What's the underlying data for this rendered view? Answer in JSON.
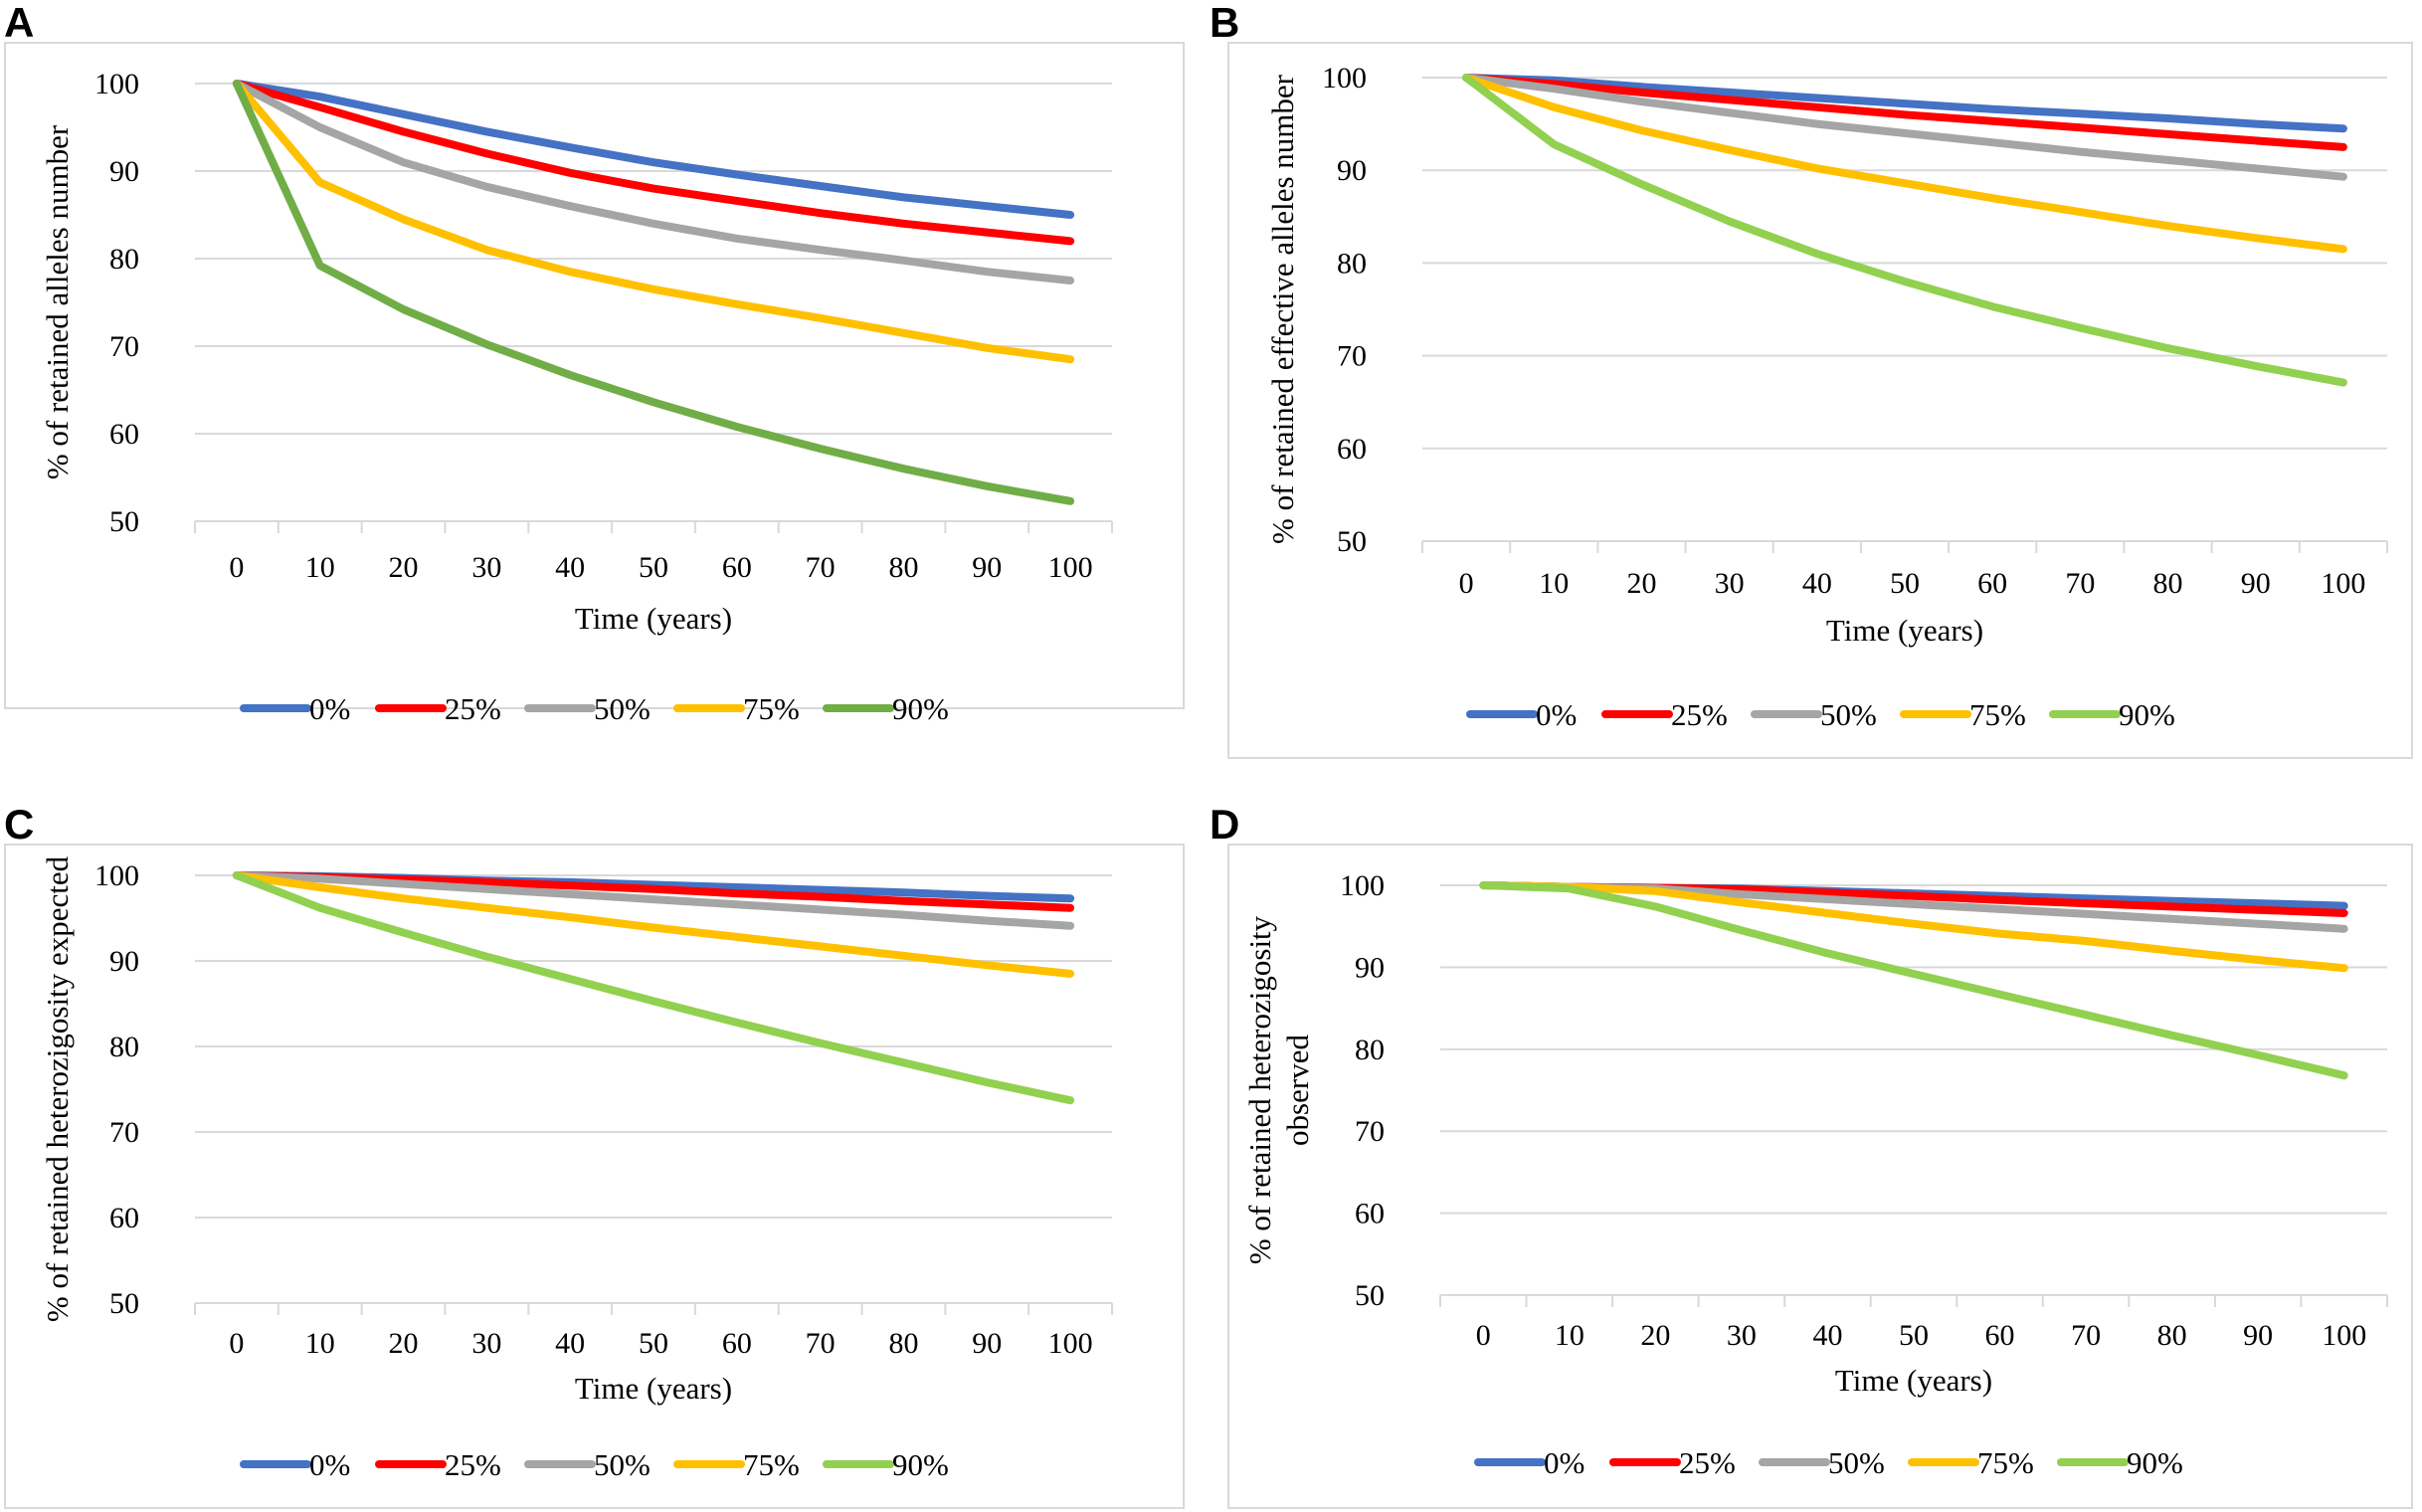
{
  "chart_data": [
    {
      "panel": "A",
      "type": "line",
      "title": "",
      "xlabel": "Time (years)",
      "ylabel": "% of retained  alleles number",
      "x": [
        0,
        10,
        20,
        30,
        40,
        50,
        60,
        70,
        80,
        90,
        100
      ],
      "xticks": [
        "0",
        "10",
        "20",
        "30",
        "40",
        "50",
        "60",
        "70",
        "80",
        "90",
        "100"
      ],
      "yticks": [
        "50",
        "60",
        "70",
        "80",
        "90",
        "100"
      ],
      "ylim": [
        50,
        100
      ],
      "legend_position": "bottom",
      "series": [
        {
          "name": "0%",
          "color": "#4472C4",
          "values": [
            100,
            98.5,
            96.5,
            94.5,
            92.7,
            91,
            89.6,
            88.3,
            87,
            86,
            85
          ]
        },
        {
          "name": "25%",
          "color": "#FF0000",
          "values": [
            100,
            97.3,
            94.5,
            92,
            89.8,
            88,
            86.6,
            85.2,
            84,
            83,
            82
          ]
        },
        {
          "name": "50%",
          "color": "#A5A5A5",
          "values": [
            100,
            95,
            91,
            88.2,
            86,
            84,
            82.3,
            81,
            79.8,
            78.5,
            77.5
          ]
        },
        {
          "name": "75%",
          "color": "#FFC000",
          "values": [
            100,
            88.7,
            84.5,
            81,
            78.5,
            76.5,
            74.8,
            73.2,
            71.5,
            69.8,
            68.5
          ]
        },
        {
          "name": "90%",
          "color": "#70AD47",
          "values": [
            100,
            79.2,
            74.2,
            70.2,
            66.7,
            63.6,
            60.8,
            58.3,
            56,
            54,
            52.3
          ]
        }
      ]
    },
    {
      "panel": "B",
      "type": "line",
      "title": "",
      "xlabel": "Time (years)",
      "ylabel": "% of retained effective alleles number",
      "x": [
        0,
        10,
        20,
        30,
        40,
        50,
        60,
        70,
        80,
        90,
        100
      ],
      "xticks": [
        "0",
        "10",
        "20",
        "30",
        "40",
        "50",
        "60",
        "70",
        "80",
        "90",
        "100"
      ],
      "yticks": [
        "50",
        "60",
        "70",
        "80",
        "90",
        "100"
      ],
      "ylim": [
        50,
        100
      ],
      "legend_position": "bottom",
      "series": [
        {
          "name": "0%",
          "color": "#4472C4",
          "values": [
            100,
            99.7,
            99,
            98.4,
            97.8,
            97.2,
            96.6,
            96.1,
            95.6,
            95,
            94.5
          ]
        },
        {
          "name": "25%",
          "color": "#FF0000",
          "values": [
            100,
            99.3,
            98.4,
            97.6,
            96.8,
            96,
            95.3,
            94.6,
            93.9,
            93.2,
            92.5
          ]
        },
        {
          "name": "50%",
          "color": "#A5A5A5",
          "values": [
            100,
            98.8,
            97.4,
            96.2,
            95,
            94,
            93,
            92,
            91.1,
            90.2,
            89.3
          ]
        },
        {
          "name": "75%",
          "color": "#FFC000",
          "values": [
            100,
            96.8,
            94.3,
            92.2,
            90.2,
            88.6,
            87,
            85.5,
            84,
            82.7,
            81.5
          ]
        },
        {
          "name": "90%",
          "color": "#92D050",
          "values": [
            100,
            92.8,
            88.5,
            84.5,
            81,
            78,
            75.3,
            73,
            70.8,
            68.9,
            67.1
          ]
        }
      ]
    },
    {
      "panel": "C",
      "type": "line",
      "title": "",
      "xlabel": "Time (years)",
      "ylabel": "% of retained heterozigosity expected",
      "x": [
        0,
        10,
        20,
        30,
        40,
        50,
        60,
        70,
        80,
        90,
        100
      ],
      "xticks": [
        "0",
        "10",
        "20",
        "30",
        "40",
        "50",
        "60",
        "70",
        "80",
        "90",
        "100"
      ],
      "yticks": [
        "50",
        "60",
        "70",
        "80",
        "90",
        "100"
      ],
      "ylim": [
        50,
        100
      ],
      "legend_position": "bottom",
      "series": [
        {
          "name": "0%",
          "color": "#4472C4",
          "values": [
            100,
            99.9,
            99.7,
            99.4,
            99.2,
            98.9,
            98.6,
            98.3,
            98,
            97.6,
            97.3
          ]
        },
        {
          "name": "25%",
          "color": "#FF0000",
          "values": [
            100,
            99.8,
            99.5,
            99.2,
            98.8,
            98.4,
            97.9,
            97.5,
            97,
            96.6,
            96.2
          ]
        },
        {
          "name": "50%",
          "color": "#A5A5A5",
          "values": [
            100,
            99.6,
            99,
            98.4,
            97.8,
            97.2,
            96.6,
            96,
            95.4,
            94.7,
            94.1
          ]
        },
        {
          "name": "75%",
          "color": "#FFC000",
          "values": [
            100,
            98.6,
            97.3,
            96.2,
            95.1,
            93.9,
            92.8,
            91.7,
            90.6,
            89.5,
            88.5
          ]
        },
        {
          "name": "90%",
          "color": "#92D050",
          "values": [
            100,
            96.2,
            93.3,
            90.5,
            87.9,
            85.3,
            82.8,
            80.4,
            78.1,
            75.8,
            73.7
          ]
        }
      ]
    },
    {
      "panel": "D",
      "type": "line",
      "title": "",
      "xlabel": "Time (years)",
      "ylabel": "% of retained heterozigosity observed",
      "ylabel_lines": [
        "% of retained heterozigosity",
        "observed"
      ],
      "x": [
        0,
        10,
        20,
        30,
        40,
        50,
        60,
        70,
        80,
        90,
        100
      ],
      "xticks": [
        "0",
        "10",
        "20",
        "30",
        "40",
        "50",
        "60",
        "70",
        "80",
        "90",
        "100"
      ],
      "yticks": [
        "50",
        "60",
        "70",
        "80",
        "90",
        "100"
      ],
      "ylim": [
        50,
        100
      ],
      "legend_position": "bottom",
      "series": [
        {
          "name": "0%",
          "color": "#4472C4",
          "values": [
            100,
            99.8,
            99.7,
            99.6,
            99.3,
            99,
            98.7,
            98.4,
            98.1,
            97.8,
            97.5
          ]
        },
        {
          "name": "25%",
          "color": "#FF0000",
          "values": [
            100,
            99.8,
            99.7,
            99.5,
            99.1,
            98.7,
            98.2,
            97.8,
            97.4,
            97,
            96.6
          ]
        },
        {
          "name": "50%",
          "color": "#A5A5A5",
          "values": [
            100,
            99.8,
            99.6,
            98.9,
            98.3,
            97.7,
            97.1,
            96.5,
            95.9,
            95.3,
            94.7
          ]
        },
        {
          "name": "75%",
          "color": "#FFC000",
          "values": [
            100,
            99.8,
            99.3,
            97.9,
            96.6,
            95.3,
            94.1,
            93.2,
            92,
            90.9,
            89.9
          ]
        },
        {
          "name": "90%",
          "color": "#92D050",
          "values": [
            100,
            99.6,
            97.4,
            94.5,
            91.7,
            89.2,
            86.7,
            84.2,
            81.7,
            79.3,
            76.8
          ]
        }
      ]
    }
  ]
}
